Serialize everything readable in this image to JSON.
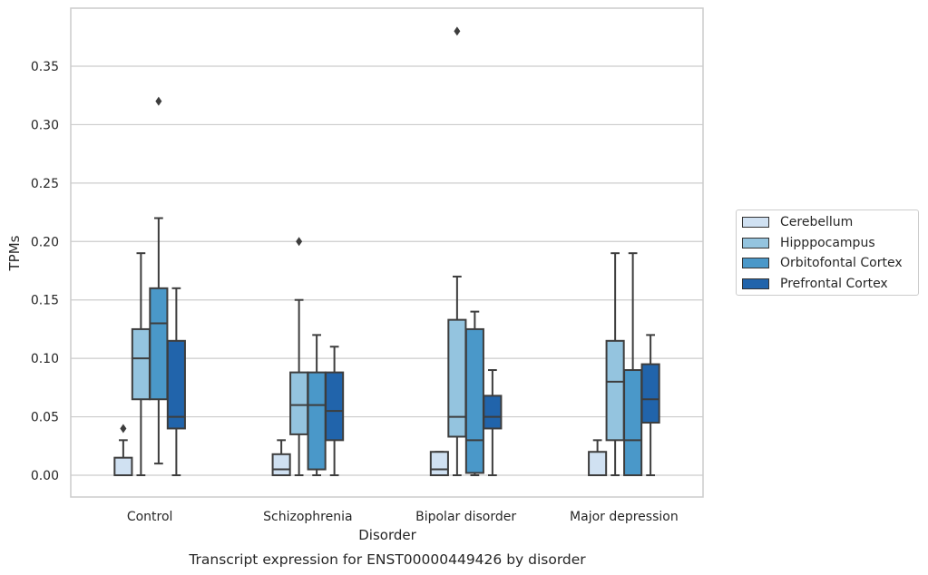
{
  "chart_data": {
    "type": "box",
    "title": "Transcript expression for ENST00000449426 by disorder",
    "xlabel": "Disorder",
    "ylabel": "TPMs",
    "ylim": [
      -0.018,
      0.398
    ],
    "yticks": [
      0.0,
      0.05,
      0.1,
      0.15,
      0.2,
      0.25,
      0.3,
      0.35
    ],
    "ytick_labels": [
      "0.00",
      "0.05",
      "0.10",
      "0.15",
      "0.20",
      "0.25",
      "0.30",
      "0.35"
    ],
    "grid": true,
    "legend_position": "right",
    "categories": [
      "Control",
      "Schizophrenia",
      "Bipolar disorder",
      "Major depression"
    ],
    "series": [
      {
        "name": "Cerebellum",
        "color": "#d0e1f2",
        "boxes": [
          {
            "q1": 0.0,
            "median": 0.0,
            "q3": 0.015,
            "whisker_low": 0.0,
            "whisker_high": 0.03,
            "outliers": [
              0.04
            ]
          },
          {
            "q1": 0.0,
            "median": 0.005,
            "q3": 0.018,
            "whisker_low": 0.0,
            "whisker_high": 0.03,
            "outliers": []
          },
          {
            "q1": 0.0,
            "median": 0.005,
            "q3": 0.02,
            "whisker_low": 0.0,
            "whisker_high": 0.02,
            "outliers": []
          },
          {
            "q1": 0.0,
            "median": 0.0,
            "q3": 0.02,
            "whisker_low": 0.0,
            "whisker_high": 0.03,
            "outliers": []
          }
        ]
      },
      {
        "name": "Hipppocampus",
        "color": "#94c4df",
        "boxes": [
          {
            "q1": 0.065,
            "median": 0.1,
            "q3": 0.125,
            "whisker_low": 0.0,
            "whisker_high": 0.19,
            "outliers": []
          },
          {
            "q1": 0.035,
            "median": 0.06,
            "q3": 0.088,
            "whisker_low": 0.0,
            "whisker_high": 0.15,
            "outliers": [
              0.2
            ]
          },
          {
            "q1": 0.033,
            "median": 0.05,
            "q3": 0.133,
            "whisker_low": 0.0,
            "whisker_high": 0.17,
            "outliers": [
              0.38
            ]
          },
          {
            "q1": 0.03,
            "median": 0.08,
            "q3": 0.115,
            "whisker_low": 0.0,
            "whisker_high": 0.19,
            "outliers": []
          }
        ]
      },
      {
        "name": "Orbitofontal Cortex",
        "color": "#4a98c9",
        "boxes": [
          {
            "q1": 0.065,
            "median": 0.13,
            "q3": 0.16,
            "whisker_low": 0.01,
            "whisker_high": 0.22,
            "outliers": [
              0.32
            ]
          },
          {
            "q1": 0.005,
            "median": 0.06,
            "q3": 0.088,
            "whisker_low": 0.0,
            "whisker_high": 0.12,
            "outliers": []
          },
          {
            "q1": 0.002,
            "median": 0.03,
            "q3": 0.125,
            "whisker_low": 0.0,
            "whisker_high": 0.14,
            "outliers": []
          },
          {
            "q1": 0.0,
            "median": 0.03,
            "q3": 0.09,
            "whisker_low": 0.0,
            "whisker_high": 0.19,
            "outliers": []
          }
        ]
      },
      {
        "name": "Prefrontal Cortex",
        "color": "#2164ab",
        "boxes": [
          {
            "q1": 0.04,
            "median": 0.05,
            "q3": 0.115,
            "whisker_low": 0.0,
            "whisker_high": 0.16,
            "outliers": []
          },
          {
            "q1": 0.03,
            "median": 0.055,
            "q3": 0.088,
            "whisker_low": 0.0,
            "whisker_high": 0.11,
            "outliers": []
          },
          {
            "q1": 0.04,
            "median": 0.05,
            "q3": 0.068,
            "whisker_low": 0.0,
            "whisker_high": 0.09,
            "outliers": []
          },
          {
            "q1": 0.045,
            "median": 0.065,
            "q3": 0.095,
            "whisker_low": 0.0,
            "whisker_high": 0.12,
            "outliers": []
          }
        ]
      }
    ]
  }
}
